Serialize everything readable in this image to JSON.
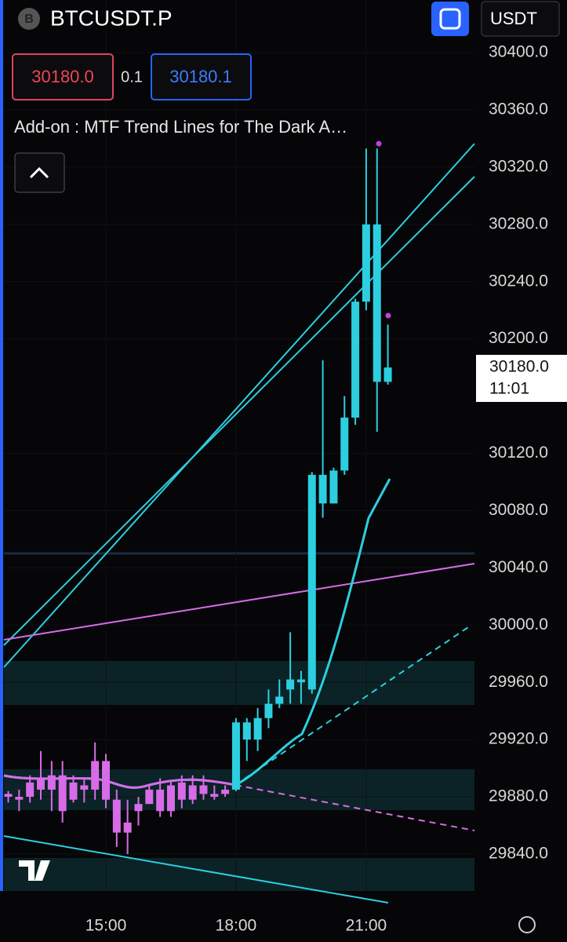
{
  "header": {
    "symbol_icon": "B",
    "symbol": "BTCUSDT.P",
    "currency": "USDT",
    "sell_price": "30180.0",
    "spread": "0.1",
    "buy_price": "30180.1",
    "indicator": "Add-on : MTF Trend Lines for The Dark A…"
  },
  "chart_data": {
    "type": "candlestick",
    "x": [
      null,
      null,
      null,
      null,
      null,
      null,
      null,
      null,
      null,
      "15:00",
      null,
      null,
      null,
      null,
      null,
      null,
      null,
      null,
      null,
      null,
      null,
      "18:00",
      null,
      null,
      null,
      null,
      null,
      null,
      null,
      null,
      null,
      null,
      null,
      "21:00",
      null,
      null
    ],
    "open": [
      29882,
      29880,
      29880,
      29892,
      29885,
      29895,
      29878,
      29888,
      29885,
      29905,
      29878,
      29855,
      29870,
      29875,
      29885,
      29870,
      29890,
      29878,
      29888,
      29880,
      29882,
      29885,
      29932,
      29920,
      29935,
      29945,
      29955,
      29962,
      29955,
      30105,
      30085,
      30108,
      30145,
      30226,
      30280,
      30170
    ],
    "high": [
      29884,
      29885,
      29895,
      29912,
      29905,
      29905,
      29895,
      29892,
      29918,
      29910,
      29885,
      29878,
      29880,
      29888,
      29893,
      29892,
      29895,
      29895,
      29895,
      29888,
      29888,
      29935,
      29935,
      29942,
      29955,
      29962,
      29995,
      29968,
      30107,
      30185,
      30110,
      30160,
      30228,
      30333,
      30333,
      30210
    ],
    "low": [
      29876,
      29870,
      29876,
      29878,
      29870,
      29862,
      29876,
      29876,
      29878,
      29872,
      29845,
      29840,
      29860,
      29875,
      29866,
      29866,
      29872,
      29875,
      29878,
      29878,
      29880,
      29884,
      29905,
      29912,
      29928,
      29942,
      29945,
      29945,
      29952,
      30075,
      30085,
      30105,
      30140,
      30220,
      30135,
      30168
    ],
    "close": [
      29880,
      29878,
      29890,
      29885,
      29895,
      29870,
      29890,
      29885,
      29905,
      29878,
      29855,
      29862,
      29875,
      29885,
      29870,
      29888,
      29878,
      29888,
      29882,
      29882,
      29885,
      29932,
      29920,
      29935,
      29945,
      29950,
      29962,
      29960,
      30105,
      30085,
      30108,
      30145,
      30226,
      30280,
      30170,
      30180
    ],
    "colors": [
      "#d86be8",
      "#d86be8",
      "#d86be8",
      "#d86be8",
      "#d86be8",
      "#d86be8",
      "#d86be8",
      "#d86be8",
      "#d86be8",
      "#d86be8",
      "#d86be8",
      "#d86be8",
      "#d86be8",
      "#d86be8",
      "#d86be8",
      "#d86be8",
      "#d86be8",
      "#d86be8",
      "#d86be8",
      "#d86be8",
      "#d86be8",
      "#2ccfe0",
      "#2ccfe0",
      "#2ccfe0",
      "#2ccfe0",
      "#2ccfe0",
      "#2ccfe0",
      "#2ccfe0",
      "#2ccfe0",
      "#2ccfe0",
      "#2ccfe0",
      "#2ccfe0",
      "#2ccfe0",
      "#2ccfe0",
      "#2ccfe0",
      "#2ccfe0"
    ],
    "ylim": [
      29814.2,
      30436.8
    ],
    "yticks": [
      {
        "value": 30400,
        "label": "30400.0"
      },
      {
        "value": 30360,
        "label": "30360.0"
      },
      {
        "value": 30320,
        "label": "30320.0"
      },
      {
        "value": 30280,
        "label": "30280.0"
      },
      {
        "value": 30240,
        "label": "30240.0"
      },
      {
        "value": 30200,
        "label": "30200.0"
      },
      {
        "value": 30120,
        "label": "30120.0"
      },
      {
        "value": 30080,
        "label": "30080.0"
      },
      {
        "value": 30040,
        "label": "30040.0"
      },
      {
        "value": 30000,
        "label": "30000.0"
      },
      {
        "value": 29960,
        "label": "29960.0"
      },
      {
        "value": 29920,
        "label": "29920.0"
      },
      {
        "value": 29880,
        "label": "29880.0"
      },
      {
        "value": 29840,
        "label": "29840.0"
      }
    ],
    "last_price": {
      "value": 30180,
      "label": "30180.0",
      "countdown": "11:01"
    }
  }
}
